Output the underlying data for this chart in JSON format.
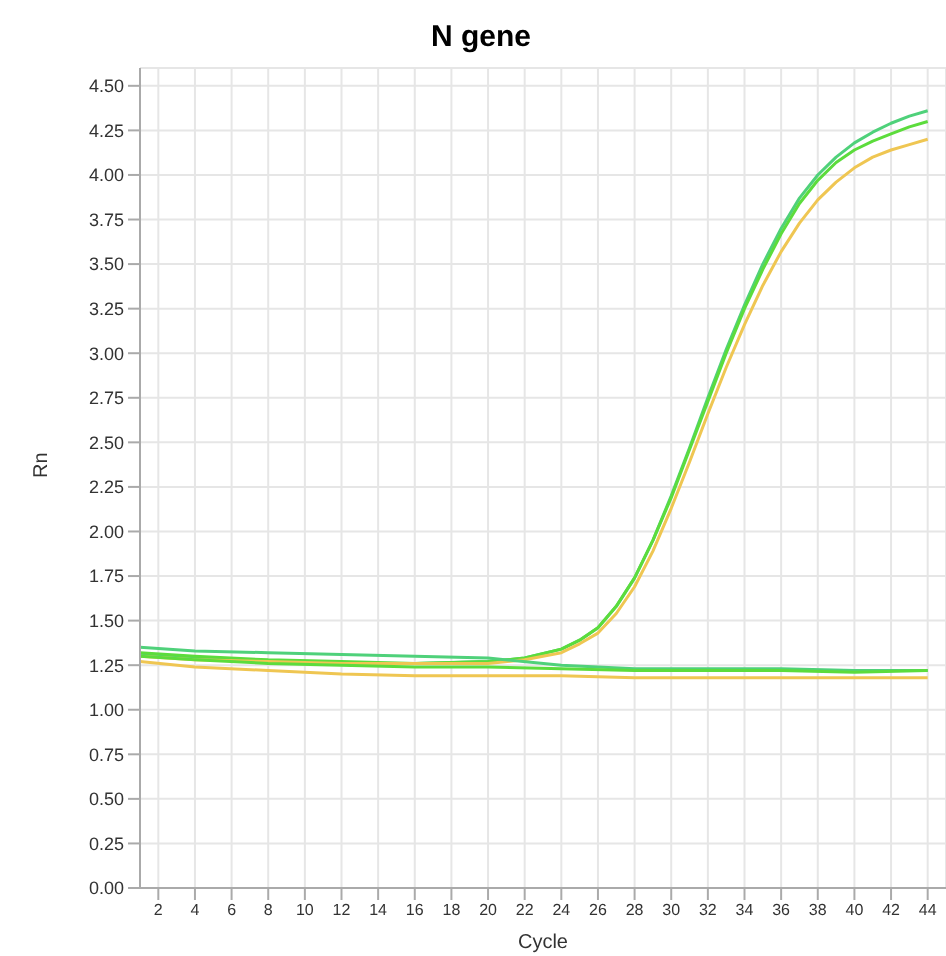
{
  "chart_data": {
    "type": "line",
    "title": "N gene",
    "xlabel": "Cycle",
    "ylabel": "Rn",
    "xlim": [
      1,
      45
    ],
    "xticks": [
      2,
      4,
      6,
      8,
      10,
      12,
      14,
      16,
      18,
      20,
      22,
      24,
      26,
      28,
      30,
      32,
      34,
      36,
      38,
      40,
      42,
      44
    ],
    "ylim": [
      0,
      4.6
    ],
    "yticks": [
      {
        "value": 0,
        "label": "0.00"
      },
      0.25,
      {
        "value": 0.5,
        "label": "0.50"
      },
      0.75,
      {
        "value": 1,
        "label": "1.00"
      },
      1.25,
      {
        "value": 1.5,
        "label": "1.50"
      },
      1.75,
      {
        "value": 2,
        "label": "2.00"
      },
      2.25,
      {
        "value": 2.5,
        "label": "2.50"
      },
      2.75,
      {
        "value": 3,
        "label": "3.00"
      },
      3.25,
      {
        "value": 3.5,
        "label": "3.50"
      },
      3.75,
      {
        "value": 4,
        "label": "4.00"
      },
      4.25,
      {
        "value": 4.5,
        "label": "4.50"
      }
    ],
    "grid": true,
    "legend": false,
    "marker": "none",
    "line_style": "solid",
    "series": [
      {
        "color": "#4fd17a",
        "x": [
          1,
          4,
          8,
          12,
          16,
          20,
          22,
          24,
          25,
          26,
          27,
          28,
          29,
          30,
          31,
          32,
          33,
          34,
          35,
          36,
          37,
          38,
          39,
          40,
          41,
          42,
          43,
          44
        ],
        "values": [
          1.31,
          1.29,
          1.27,
          1.26,
          1.26,
          1.27,
          1.29,
          1.34,
          1.39,
          1.46,
          1.58,
          1.74,
          1.95,
          2.2,
          2.47,
          2.75,
          3.02,
          3.27,
          3.5,
          3.7,
          3.87,
          4.0,
          4.1,
          4.18,
          4.24,
          4.29,
          4.33,
          4.36
        ]
      },
      {
        "color": "#5cdc3c",
        "x": [
          1,
          4,
          8,
          12,
          16,
          20,
          22,
          24,
          25,
          26,
          27,
          28,
          29,
          30,
          31,
          32,
          33,
          34,
          35,
          36,
          37,
          38,
          39,
          40,
          41,
          42,
          43,
          44
        ],
        "values": [
          1.32,
          1.3,
          1.28,
          1.27,
          1.26,
          1.27,
          1.29,
          1.34,
          1.39,
          1.46,
          1.58,
          1.74,
          1.95,
          2.19,
          2.46,
          2.73,
          3.0,
          3.25,
          3.47,
          3.67,
          3.84,
          3.97,
          4.07,
          4.14,
          4.19,
          4.23,
          4.27,
          4.3
        ]
      },
      {
        "color": "#efc652",
        "x": [
          1,
          4,
          8,
          12,
          16,
          20,
          22,
          24,
          25,
          26,
          27,
          28,
          29,
          30,
          31,
          32,
          33,
          34,
          35,
          36,
          37,
          38,
          39,
          40,
          41,
          42,
          43,
          44
        ],
        "values": [
          1.3,
          1.28,
          1.27,
          1.26,
          1.26,
          1.26,
          1.28,
          1.32,
          1.37,
          1.43,
          1.54,
          1.69,
          1.89,
          2.13,
          2.39,
          2.66,
          2.92,
          3.16,
          3.38,
          3.57,
          3.73,
          3.86,
          3.96,
          4.04,
          4.1,
          4.14,
          4.17,
          4.2
        ]
      },
      {
        "color": "#4fd17a",
        "x": [
          1,
          4,
          8,
          12,
          16,
          20,
          24,
          28,
          32,
          36,
          40,
          44
        ],
        "values": [
          1.35,
          1.33,
          1.32,
          1.31,
          1.3,
          1.29,
          1.25,
          1.23,
          1.23,
          1.23,
          1.22,
          1.22
        ]
      },
      {
        "color": "#5cdc3c",
        "x": [
          1,
          4,
          8,
          12,
          16,
          20,
          24,
          28,
          32,
          36,
          40,
          44
        ],
        "values": [
          1.3,
          1.28,
          1.26,
          1.25,
          1.24,
          1.24,
          1.23,
          1.22,
          1.22,
          1.22,
          1.21,
          1.22
        ]
      },
      {
        "color": "#efc652",
        "x": [
          1,
          4,
          8,
          12,
          16,
          20,
          24,
          28,
          32,
          36,
          40,
          44
        ],
        "values": [
          1.27,
          1.24,
          1.22,
          1.2,
          1.19,
          1.19,
          1.19,
          1.18,
          1.18,
          1.18,
          1.18,
          1.18
        ]
      }
    ]
  }
}
